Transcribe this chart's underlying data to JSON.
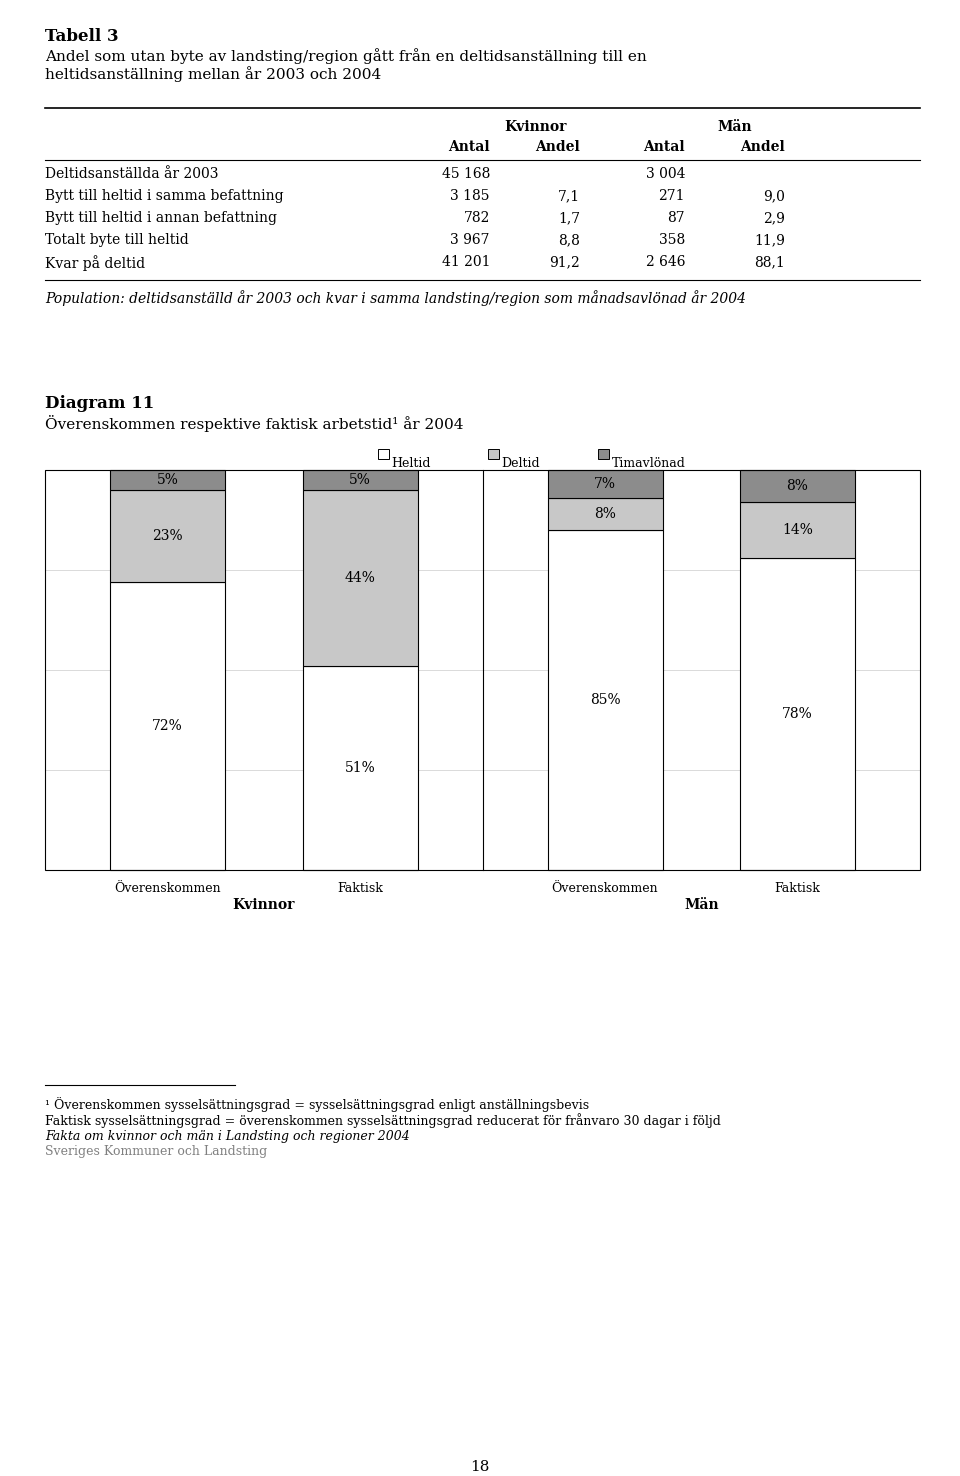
{
  "page_title_bold": "Tabell 3",
  "page_title": "Andel som utan byte av landsting/region gått från en deltidsanställning till en\nheltidsanställning mellan år 2003 och 2004",
  "table_rows": [
    [
      "Deltidsanställda år 2003",
      "45 168",
      "",
      "3 004",
      ""
    ],
    [
      "Bytt till heltid i samma befattning",
      "3 185",
      "7,1",
      "271",
      "9,0"
    ],
    [
      "Bytt till heltid i annan befattning",
      "782",
      "1,7",
      "87",
      "2,9"
    ],
    [
      "Totalt byte till heltid",
      "3 967",
      "8,8",
      "358",
      "11,9"
    ],
    [
      "Kvar på deltid",
      "41 201",
      "91,2",
      "2 646",
      "88,1"
    ]
  ],
  "population_text": "deltidsanställd år 2003 och kvar i samma landsting/region som månadsavlönad år 2004",
  "diagram_title_bold": "Diagram 11",
  "diagram_title": "Överenskommen respektive faktisk arbetstid¹ år 2004",
  "legend_items": [
    "Heltid",
    "Deltid",
    "Timavlönad"
  ],
  "legend_colors": [
    "#ffffff",
    "#c8c8c8",
    "#8c8c8c"
  ],
  "bar_groups": [
    {
      "group_label": "Kvinnor",
      "bars": [
        {
          "label": "Överenskommen",
          "heltid": 72,
          "deltid": 23,
          "timavlonad": 5
        },
        {
          "label": "Faktisk",
          "heltid": 51,
          "deltid": 44,
          "timavlonad": 5
        }
      ]
    },
    {
      "group_label": "Män",
      "bars": [
        {
          "label": "Överenskommen",
          "heltid": 85,
          "deltid": 8,
          "timavlonad": 7
        },
        {
          "label": "Faktisk",
          "heltid": 78,
          "deltid": 14,
          "timavlonad": 8
        }
      ]
    }
  ],
  "footnote1": "¹ Överenskommen sysselsättningsgrad = sysselsättningsgrad enligt anställningsbevis",
  "footnote2": "Faktisk sysselsättningsgrad = överenskommen sysselsättningsgrad reducerat för frånvaro 30 dagar i följd",
  "footnote3": "Fakta om kvinnor och män i Landsting och regioner 2004",
  "footnote4": "Sveriges Kommuner och Landsting",
  "page_number": "18"
}
